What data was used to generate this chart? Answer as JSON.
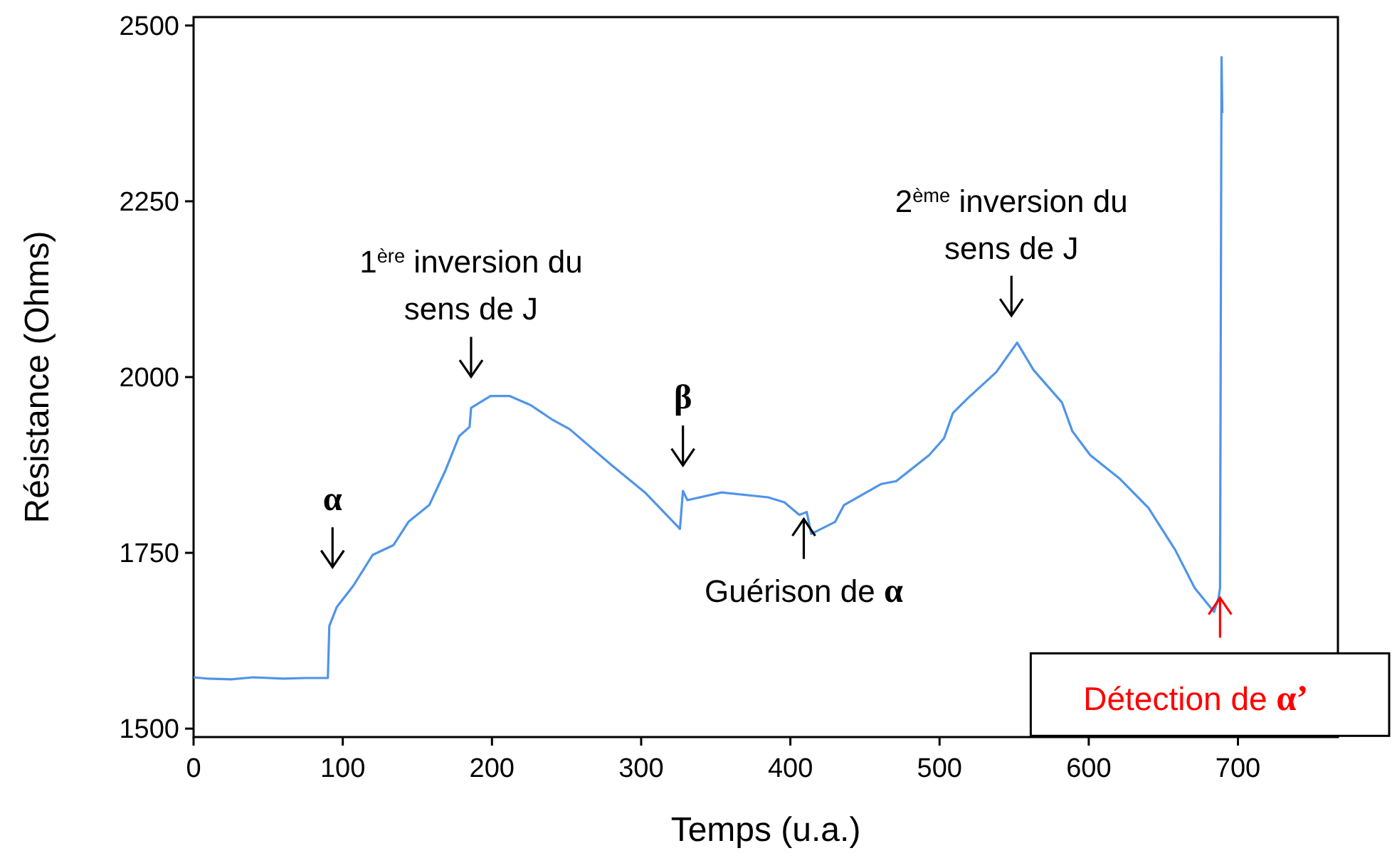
{
  "chart_data": {
    "type": "line",
    "xlabel": "Temps (u.a.)",
    "ylabel": "Résistance (Ohms)",
    "xlim": [
      0,
      767
    ],
    "ylim": [
      1488,
      2512
    ],
    "xticks": [
      0,
      100,
      200,
      300,
      400,
      500,
      600,
      700
    ],
    "yticks": [
      1500,
      1750,
      2000,
      2250,
      2500
    ],
    "grid": false,
    "marker": "none",
    "line_style": "solid",
    "series": [
      {
        "color": "#4f94ea",
        "x": [
          0,
          10,
          25,
          40,
          60,
          75,
          90,
          91,
          96,
          107,
          120,
          134,
          144,
          158,
          169,
          178,
          185,
          186,
          199,
          212,
          226,
          240,
          252,
          280,
          303,
          326,
          328,
          331,
          354,
          385,
          396,
          406,
          411,
          414,
          430,
          436,
          461,
          471,
          493,
          503,
          509,
          519,
          538,
          552,
          563,
          582,
          589,
          601,
          621,
          640,
          658,
          671,
          684,
          687,
          688,
          689,
          689.5
        ],
        "values": [
          1573,
          1571,
          1570,
          1573,
          1571,
          1572,
          1572,
          1646,
          1673,
          1703,
          1747,
          1761,
          1794,
          1818,
          1868,
          1916,
          1929,
          1956,
          1973,
          1973,
          1960,
          1940,
          1926,
          1875,
          1835,
          1784,
          1838,
          1825,
          1836,
          1829,
          1822,
          1804,
          1808,
          1777,
          1794,
          1818,
          1848,
          1852,
          1889,
          1913,
          1949,
          1970,
          2007,
          2049,
          2010,
          1964,
          1923,
          1889,
          1855,
          1814,
          1754,
          1700,
          1666,
          1686,
          1700,
          2455,
          2375
        ]
      }
    ],
    "annotations": [
      {
        "text": "α",
        "x": 96,
        "y": 1673
      },
      {
        "text": "1$^{ère}$ inversion du sens de J",
        "x": 186,
        "y": 1956
      },
      {
        "text": "β",
        "x": 328,
        "y": 1838
      },
      {
        "text": "Guérison de α",
        "x": 409,
        "y": 1798
      },
      {
        "text": "2$^{ème}$ inversion du sens de J",
        "x": 552,
        "y": 2049
      },
      {
        "text": "Détection de α’",
        "x": 688,
        "y": 1686
      }
    ]
  }
}
